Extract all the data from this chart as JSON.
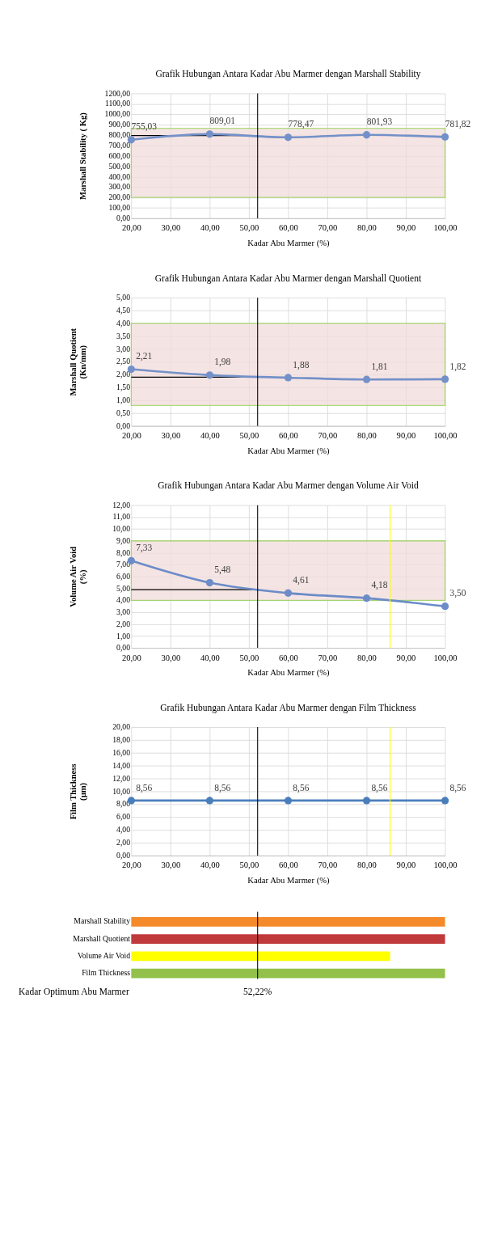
{
  "chart_data": [
    {
      "type": "line",
      "title": "Grafik Hubungan Antara Kadar Abu Marmer dengan Marshall Stability",
      "xlabel": "Kadar Abu Marmer (%)",
      "ylabel": "Marshall Stability ( Kg)",
      "x": [
        20,
        40,
        60,
        80,
        100
      ],
      "series": [
        {
          "color": "#7391c8",
          "values": [
            755.03,
            809.01,
            778.47,
            801.93,
            781.82
          ],
          "value_labels": [
            "755,03",
            "809,01",
            "778,47",
            "801,93",
            "781,82"
          ]
        }
      ],
      "xlim": [
        20,
        100
      ],
      "ylim": [
        0,
        1200
      ],
      "xticks": [
        {
          "value": 20,
          "label": "20,00"
        },
        {
          "value": 30,
          "label": "30,00"
        },
        {
          "value": 40,
          "label": "40,00"
        },
        {
          "value": 50,
          "label": "50,00"
        },
        {
          "value": 60,
          "label": "60,00"
        },
        {
          "value": 70,
          "label": "70,00"
        },
        {
          "value": 80,
          "label": "80,00"
        },
        {
          "value": 90,
          "label": "90,00"
        },
        {
          "value": 100,
          "label": "100,00"
        }
      ],
      "yticks": [
        {
          "value": 0,
          "label": "0,00"
        },
        {
          "value": 100,
          "label": "100,00"
        },
        {
          "value": 200,
          "label": "200,00"
        },
        {
          "value": 300,
          "label": "300,00"
        },
        {
          "value": 400,
          "label": "400,00"
        },
        {
          "value": 500,
          "label": "500,00"
        },
        {
          "value": 600,
          "label": "600,00"
        },
        {
          "value": 700,
          "label": "700,00"
        },
        {
          "value": 800,
          "label": "800,00"
        },
        {
          "value": 900,
          "label": "900,00"
        },
        {
          "value": 1000,
          "label": "1000,00"
        },
        {
          "value": 1100,
          "label": "1100,00"
        },
        {
          "value": 1200,
          "label": "1200,00"
        }
      ],
      "bands": [
        {
          "axis": "y",
          "from": 200,
          "to": 865,
          "color": "#f2dcdb"
        }
      ],
      "ref_lines": [
        {
          "axis": "x",
          "value": 52.22,
          "color": "#000000"
        },
        {
          "axis": "y",
          "value": 795,
          "color": "#000000"
        }
      ],
      "grid": true,
      "marker": "circle",
      "line_style": "solid"
    },
    {
      "type": "line",
      "title": "Grafik Hubungan Antara Kadar Abu Marmer dengan Marshall Quotient",
      "xlabel": "Kadar Abu Marmer (%)",
      "ylabel": "Marshall Quotient\n(Kn/mm)",
      "x": [
        20,
        40,
        60,
        80,
        100
      ],
      "series": [
        {
          "color": "#7391c8",
          "values": [
            2.21,
            1.98,
            1.88,
            1.81,
            1.82
          ],
          "value_labels": [
            "2,21",
            "1,98",
            "1,88",
            "1,81",
            "1,82"
          ]
        }
      ],
      "xlim": [
        20,
        100
      ],
      "ylim": [
        0,
        5
      ],
      "xticks": [
        {
          "value": 20,
          "label": "20,00"
        },
        {
          "value": 30,
          "label": "30,00"
        },
        {
          "value": 40,
          "label": "40,00"
        },
        {
          "value": 50,
          "label": "50,00"
        },
        {
          "value": 60,
          "label": "60,00"
        },
        {
          "value": 70,
          "label": "70,00"
        },
        {
          "value": 80,
          "label": "80,00"
        },
        {
          "value": 90,
          "label": "90,00"
        },
        {
          "value": 100,
          "label": "100,00"
        }
      ],
      "yticks": [
        {
          "value": 0,
          "label": "0,00"
        },
        {
          "value": 0.5,
          "label": "0,50"
        },
        {
          "value": 1,
          "label": "1,00"
        },
        {
          "value": 1.5,
          "label": "1,50"
        },
        {
          "value": 2,
          "label": "2,00"
        },
        {
          "value": 2.5,
          "label": "2,50"
        },
        {
          "value": 3,
          "label": "3,00"
        },
        {
          "value": 3.5,
          "label": "3,50"
        },
        {
          "value": 4,
          "label": "4,00"
        },
        {
          "value": 4.5,
          "label": "4,50"
        },
        {
          "value": 5,
          "label": "5,00"
        }
      ],
      "bands": [
        {
          "axis": "y",
          "from": 0.8,
          "to": 4.0,
          "color": "#f2dcdb"
        }
      ],
      "ref_lines": [
        {
          "axis": "x",
          "value": 52.22,
          "color": "#000000"
        },
        {
          "axis": "y",
          "value": 1.9,
          "color": "#000000"
        }
      ],
      "grid": true,
      "marker": "circle",
      "line_style": "solid"
    },
    {
      "type": "line",
      "title": "Grafik Hubungan Antara Kadar Abu Marmer dengan Volume Air Void",
      "xlabel": "Kadar Abu Marmer (%)",
      "ylabel": "Volume Air Void\n(%)",
      "x": [
        20,
        40,
        60,
        80,
        100
      ],
      "series": [
        {
          "color": "#6b8cc7",
          "values": [
            7.33,
            5.48,
            4.61,
            4.18,
            3.5
          ],
          "value_labels": [
            "7,33",
            "5,48",
            "4,61",
            "4,18",
            "3,50"
          ]
        }
      ],
      "xlim": [
        20,
        100
      ],
      "ylim": [
        0,
        12
      ],
      "xticks": [
        {
          "value": 20,
          "label": "20,00"
        },
        {
          "value": 30,
          "label": "30,00"
        },
        {
          "value": 40,
          "label": "40,00"
        },
        {
          "value": 50,
          "label": "50,00"
        },
        {
          "value": 60,
          "label": "60,00"
        },
        {
          "value": 70,
          "label": "70,00"
        },
        {
          "value": 80,
          "label": "80,00"
        },
        {
          "value": 90,
          "label": "90,00"
        },
        {
          "value": 100,
          "label": "100,00"
        }
      ],
      "yticks": [
        {
          "value": 0,
          "label": "0,00"
        },
        {
          "value": 1,
          "label": "1,00"
        },
        {
          "value": 2,
          "label": "2,00"
        },
        {
          "value": 3,
          "label": "3,00"
        },
        {
          "value": 4,
          "label": "4,00"
        },
        {
          "value": 5,
          "label": "5,00"
        },
        {
          "value": 6,
          "label": "6,00"
        },
        {
          "value": 7,
          "label": "7,00"
        },
        {
          "value": 8,
          "label": "8,00"
        },
        {
          "value": 9,
          "label": "9,00"
        },
        {
          "value": 10,
          "label": "10,00"
        },
        {
          "value": 11,
          "label": "11,00"
        },
        {
          "value": 12,
          "label": "12,00"
        }
      ],
      "bands": [
        {
          "axis": "y",
          "from": 4.0,
          "to": 9.0,
          "color": "#f2dcdb"
        }
      ],
      "ref_lines": [
        {
          "axis": "x",
          "value": 52.22,
          "color": "#000000"
        },
        {
          "axis": "y",
          "value": 4.9,
          "color": "#000000"
        },
        {
          "axis": "x",
          "value": 86,
          "color": "#ffff00"
        }
      ],
      "grid": true,
      "marker": "circle",
      "line_style": "solid"
    },
    {
      "type": "line",
      "title": "Grafik Hubungan Antara Kadar Abu Marmer dengan Film Thickness",
      "xlabel": "Kadar Abu Marmer (%)",
      "ylabel": "Film Thickness\n(µm)",
      "x": [
        20,
        40,
        60,
        80,
        100
      ],
      "series": [
        {
          "color": "#4a7ebb",
          "values": [
            8.56,
            8.56,
            8.56,
            8.56,
            8.56
          ],
          "value_labels": [
            "8,56",
            "8,56",
            "8,56",
            "8,56",
            "8,56"
          ]
        }
      ],
      "xlim": [
        20,
        100
      ],
      "ylim": [
        0,
        20
      ],
      "xticks": [
        {
          "value": 20,
          "label": "20,00"
        },
        {
          "value": 30,
          "label": "30,00"
        },
        {
          "value": 40,
          "label": "40,00"
        },
        {
          "value": 50,
          "label": "50,00"
        },
        {
          "value": 60,
          "label": "60,00"
        },
        {
          "value": 70,
          "label": "70,00"
        },
        {
          "value": 80,
          "label": "80,00"
        },
        {
          "value": 90,
          "label": "90,00"
        },
        {
          "value": 100,
          "label": "100,00"
        }
      ],
      "yticks": [
        {
          "value": 0,
          "label": "0,00"
        },
        {
          "value": 2,
          "label": "2,00"
        },
        {
          "value": 4,
          "label": "4,00"
        },
        {
          "value": 6,
          "label": "6,00"
        },
        {
          "value": 8,
          "label": "8,00"
        },
        {
          "value": 10,
          "label": "10,00"
        },
        {
          "value": 12,
          "label": "12,00"
        },
        {
          "value": 14,
          "label": "14,00"
        },
        {
          "value": 16,
          "label": "16,00"
        },
        {
          "value": 18,
          "label": "18,00"
        },
        {
          "value": 20,
          "label": "20,00"
        }
      ],
      "ref_lines": [
        {
          "axis": "x",
          "value": 52.22,
          "color": "#000000"
        },
        {
          "axis": "x",
          "value": 86,
          "color": "#ffff00"
        }
      ],
      "grid": true,
      "marker": "circle",
      "line_style": "solid"
    },
    {
      "type": "bar",
      "orientation": "horizontal",
      "categories": [
        "Marshall Stability",
        "Marshall Quotient",
        "Volume Air Void",
        "Film Thickness"
      ],
      "base": [
        20,
        20,
        20,
        20
      ],
      "values": [
        80,
        80,
        66,
        80
      ],
      "colors": [
        "#f58a2a",
        "#c0393b",
        "#ffff00",
        "#92c04a"
      ],
      "xlim": [
        20,
        100
      ],
      "tick_labels": "y",
      "ref_lines": [
        {
          "axis": "x",
          "value": 52.22,
          "color": "#000000"
        }
      ],
      "annotations": [
        "Kadar Optimum Abu Marmer",
        "52,22%"
      ],
      "grid": false
    }
  ]
}
